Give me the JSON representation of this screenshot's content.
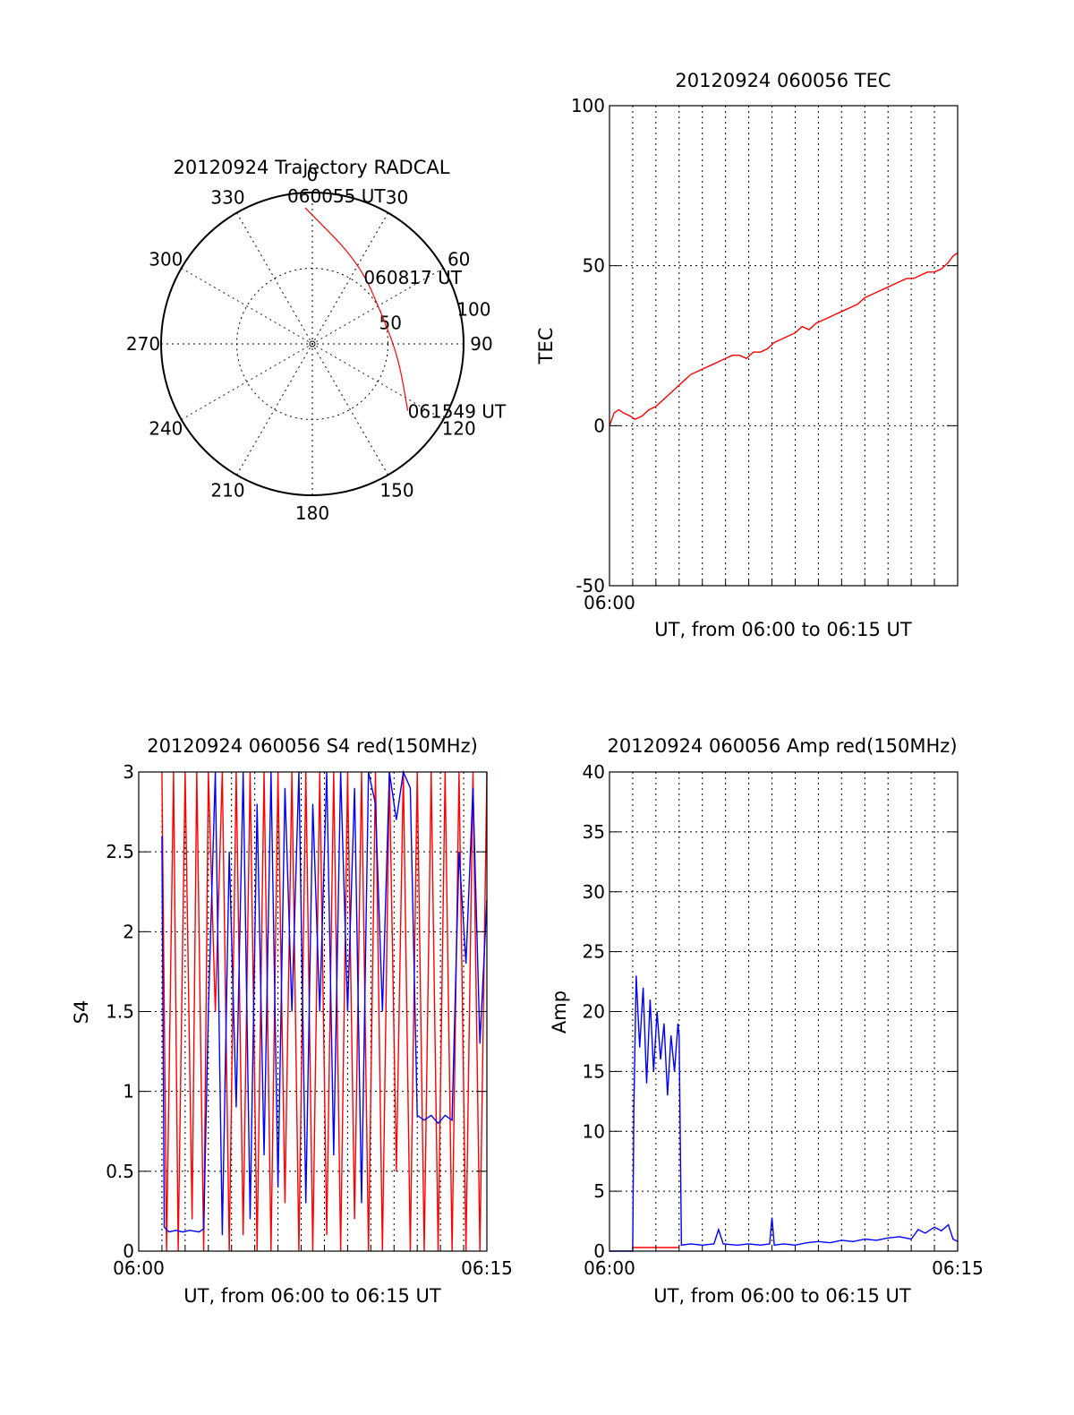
{
  "colors": {
    "red": "#ff0000",
    "blue": "#0000ff",
    "axis": "#000000",
    "grid": "#000000"
  },
  "chart_data": [
    {
      "id": "trajectory",
      "type": "polar",
      "title": "20120924 Trajectory RADCAL",
      "azimuth_ticks": [
        "0",
        "30",
        "60",
        "90",
        "120",
        "150",
        "180",
        "210",
        "240",
        "270",
        "300",
        "330"
      ],
      "radial_ticks": [
        "50",
        "100"
      ],
      "rmax": 100,
      "track": [
        {
          "az": -3,
          "r": 90,
          "label": "060055 UT"
        },
        {
          "az": 30,
          "r": 62,
          "label": ""
        },
        {
          "az": 70,
          "r": 50,
          "label": "060817 UT"
        },
        {
          "az": 100,
          "r": 58,
          "label": ""
        },
        {
          "az": 125,
          "r": 77,
          "label": "061549 UT"
        }
      ],
      "color": "red"
    },
    {
      "id": "tec",
      "type": "line",
      "title": "20120924 060056 TEC",
      "xlabel": "UT, from 06:00 to 06:15 UT",
      "ylabel": "TEC",
      "xlim": [
        0,
        15
      ],
      "ylim": [
        -50,
        100
      ],
      "yticks": [
        "-50",
        "0",
        "50",
        "100"
      ],
      "xtick_labels": [
        "06:00"
      ],
      "grid": true,
      "series": [
        {
          "color": "red",
          "x": [
            0.0,
            0.2,
            0.4,
            0.6,
            0.9,
            1.1,
            1.4,
            1.7,
            2.0,
            2.3,
            2.6,
            2.9,
            3.2,
            3.5,
            3.8,
            4.1,
            4.4,
            4.7,
            5.0,
            5.3,
            5.6,
            5.9,
            6.2,
            6.5,
            6.8,
            7.1,
            7.4,
            7.7,
            8.0,
            8.3,
            8.6,
            8.9,
            9.2,
            9.5,
            9.8,
            10.1,
            10.4,
            10.7,
            11.0,
            11.3,
            11.6,
            11.9,
            12.2,
            12.5,
            12.8,
            13.1,
            13.4,
            13.7,
            14.0,
            14.3,
            14.6,
            14.8,
            15.0
          ],
          "y": [
            0,
            4,
            5,
            4,
            3,
            2,
            3,
            5,
            6,
            8,
            10,
            12,
            14,
            16,
            17,
            18,
            19,
            20,
            21,
            22,
            22,
            21,
            23,
            23,
            24,
            26,
            27,
            28,
            29,
            31,
            30,
            32,
            33,
            34,
            35,
            36,
            37,
            38,
            40,
            41,
            42,
            43,
            44,
            45,
            46,
            46,
            47,
            48,
            48,
            49,
            51,
            53,
            54
          ]
        }
      ]
    },
    {
      "id": "s4",
      "type": "line",
      "title": "20120924 060056 S4 red(150MHz)",
      "xlabel": "UT, from 06:00 to 06:15 UT",
      "ylabel": "S4",
      "xlim": [
        0,
        15
      ],
      "ylim": [
        0,
        3
      ],
      "yticks": [
        "0",
        "0.5",
        "1",
        "1.5",
        "2",
        "2.5",
        "3"
      ],
      "xtick_labels": [
        "06:00",
        "06:15"
      ],
      "grid": true,
      "series": [
        {
          "color": "red",
          "x": [
            1.0,
            1.2,
            1.5,
            1.7,
            2.0,
            2.3,
            2.5,
            2.8,
            3.0,
            3.3,
            3.6,
            3.9,
            4.2,
            4.5,
            4.8,
            5.1,
            5.4,
            5.7,
            6.0,
            6.3,
            6.6,
            6.9,
            7.2,
            7.5,
            7.8,
            8.1,
            8.4,
            8.7,
            9.0,
            9.3,
            9.6,
            9.9,
            10.2,
            10.5,
            10.8,
            11.1,
            11.4,
            11.7,
            12.0,
            12.3,
            12.6,
            12.9,
            13.2,
            13.5,
            13.8,
            14.1,
            14.4,
            14.7,
            15.0
          ],
          "y": [
            3,
            0,
            3,
            0,
            3,
            0.2,
            3,
            0,
            3,
            1.5,
            3,
            0,
            3,
            0.1,
            3,
            0,
            3,
            0,
            3,
            0.3,
            3,
            0,
            3,
            0,
            3,
            0.1,
            3,
            0,
            3,
            0.2,
            3,
            0,
            3,
            0,
            3,
            0.5,
            3,
            0,
            3,
            0,
            3,
            0,
            3,
            0,
            3,
            0,
            3,
            0,
            3
          ]
        },
        {
          "color": "blue",
          "x": [
            1.0,
            1.1,
            1.3,
            1.6,
            1.9,
            2.2,
            2.6,
            2.8,
            3.0,
            3.3,
            3.6,
            3.9,
            4.2,
            4.5,
            4.8,
            5.1,
            5.4,
            5.7,
            6.0,
            6.3,
            6.6,
            6.9,
            7.2,
            7.5,
            7.8,
            8.1,
            8.4,
            8.7,
            9.0,
            9.3,
            9.6,
            9.9,
            10.2,
            10.5,
            10.8,
            11.1,
            11.4,
            11.7,
            12.0,
            12.3,
            12.6,
            12.9,
            13.2,
            13.5,
            13.8,
            14.1,
            14.4,
            14.7,
            15.0
          ],
          "y": [
            2.6,
            0.15,
            0.12,
            0.13,
            0.12,
            0.13,
            0.12,
            0.14,
            1.5,
            3,
            0.1,
            2.5,
            0.9,
            3,
            0.2,
            2.8,
            0.6,
            3,
            0.4,
            2.9,
            1.5,
            3,
            0.3,
            2.8,
            1.5,
            3,
            0.6,
            3,
            1.5,
            2.9,
            0.3,
            3,
            2.8,
            1.5,
            3,
            2.7,
            3,
            2.9,
            0.85,
            0.82,
            0.85,
            0.8,
            0.85,
            0.82,
            2.5,
            1.8,
            2.9,
            1.3,
            2.2
          ]
        }
      ]
    },
    {
      "id": "amp",
      "type": "line",
      "title": "20120924 060056 Amp red(150MHz)",
      "xlabel": "UT, from 06:00 to 06:15 UT",
      "ylabel": "Amp",
      "xlim": [
        0,
        15
      ],
      "ylim": [
        0,
        40
      ],
      "yticks": [
        "0",
        "5",
        "10",
        "15",
        "20",
        "25",
        "30",
        "35",
        "40"
      ],
      "xtick_labels": [
        "06:00",
        "06:15"
      ],
      "grid": true,
      "series": [
        {
          "color": "red",
          "x": [
            1.0,
            1.5,
            2.0,
            2.5,
            3.0
          ],
          "y": [
            0.3,
            0.3,
            0.3,
            0.3,
            0.3
          ]
        },
        {
          "color": "blue",
          "x": [
            0.0,
            1.0,
            1.05,
            1.15,
            1.3,
            1.45,
            1.6,
            1.75,
            1.9,
            2.05,
            2.2,
            2.35,
            2.5,
            2.65,
            2.8,
            2.95,
            3.0,
            3.1,
            3.5,
            4.0,
            4.5,
            4.7,
            4.9,
            5.5,
            6.0,
            6.5,
            6.9,
            7.0,
            7.1,
            7.5,
            8.0,
            8.5,
            9.0,
            9.5,
            10.0,
            10.5,
            11.0,
            11.5,
            12.0,
            12.5,
            13.0,
            13.3,
            13.6,
            14.0,
            14.3,
            14.6,
            14.8,
            15.0
          ],
          "y": [
            0,
            0,
            12,
            23,
            17,
            22,
            14,
            21,
            15,
            20,
            16,
            19,
            13,
            18,
            15,
            19,
            18,
            0.5,
            0.6,
            0.5,
            0.6,
            1.8,
            0.6,
            0.5,
            0.6,
            0.5,
            0.6,
            2.8,
            0.5,
            0.6,
            0.5,
            0.7,
            0.8,
            0.7,
            0.9,
            0.8,
            1.0,
            0.9,
            1.1,
            1.2,
            1.0,
            1.8,
            1.5,
            2.0,
            1.7,
            2.2,
            1.0,
            0.8
          ]
        }
      ]
    }
  ]
}
